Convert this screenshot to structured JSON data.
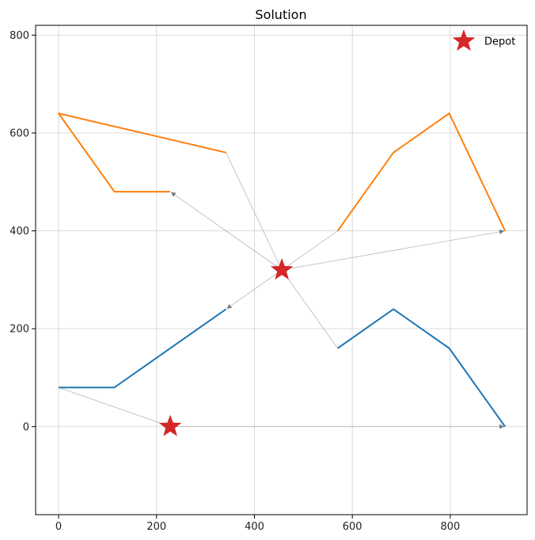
{
  "chart_data": {
    "type": "line",
    "title": "Solution",
    "xlabel": "",
    "ylabel": "",
    "xlim": [
      -47,
      957
    ],
    "ylim": [
      -180,
      820
    ],
    "x_ticks": [
      0,
      200,
      400,
      600,
      800
    ],
    "y_ticks": [
      0,
      200,
      400,
      600,
      800
    ],
    "grid": true,
    "legend": {
      "position": "top-right",
      "entries": [
        {
          "label": "Depot",
          "marker": "star",
          "color": "#d62728"
        }
      ]
    },
    "depots": [
      {
        "x": 228,
        "y": 0
      },
      {
        "x": 456,
        "y": 320
      }
    ],
    "series": [
      {
        "color": "#1f77b4",
        "points": [
          [
            342,
            240
          ],
          [
            114,
            80
          ],
          [
            0,
            80
          ]
        ]
      },
      {
        "color": "#1f77b4",
        "points": [
          [
            570,
            160
          ],
          [
            684,
            240
          ],
          [
            798,
            160
          ],
          [
            912,
            0
          ]
        ]
      },
      {
        "color": "#ff7f0e",
        "points": [
          [
            228,
            480
          ],
          [
            114,
            480
          ],
          [
            0,
            640
          ],
          [
            342,
            560
          ]
        ]
      },
      {
        "color": "#ff7f0e",
        "points": [
          [
            570,
            400
          ],
          [
            684,
            560
          ],
          [
            798,
            640
          ],
          [
            912,
            400
          ]
        ]
      }
    ],
    "connectors": [
      {
        "from": [
          0,
          80
        ],
        "to": [
          228,
          0
        ],
        "arrow": false
      },
      {
        "from": [
          228,
          0
        ],
        "to": [
          912,
          0
        ],
        "arrow": true
      },
      {
        "from": [
          456,
          320
        ],
        "to": [
          342,
          240
        ],
        "arrow": true
      },
      {
        "from": [
          456,
          320
        ],
        "to": [
          570,
          160
        ],
        "arrow": false
      },
      {
        "from": [
          456,
          320
        ],
        "to": [
          228,
          480
        ],
        "arrow": true
      },
      {
        "from": [
          342,
          560
        ],
        "to": [
          456,
          320
        ],
        "arrow": false
      },
      {
        "from": [
          456,
          320
        ],
        "to": [
          570,
          400
        ],
        "arrow": false
      },
      {
        "from": [
          456,
          320
        ],
        "to": [
          912,
          400
        ],
        "arrow": true
      }
    ],
    "connector_color": "#999999"
  }
}
